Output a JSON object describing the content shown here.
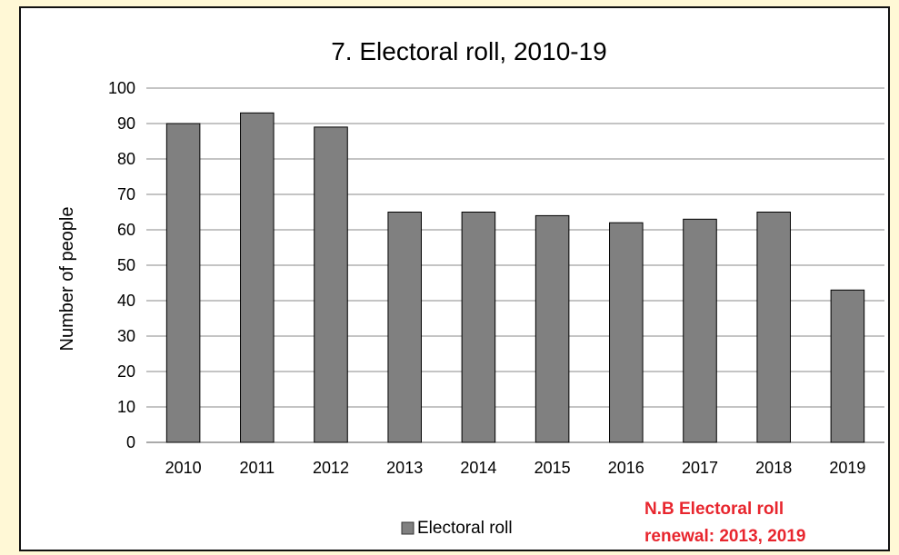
{
  "chart_data": {
    "type": "bar",
    "title": "7. Electoral roll, 2010-19",
    "xlabel": "",
    "ylabel": "Number of people",
    "categories": [
      "2010",
      "2011",
      "2012",
      "2013",
      "2014",
      "2015",
      "2016",
      "2017",
      "2018",
      "2019"
    ],
    "series": [
      {
        "name": "Electoral roll",
        "values": [
          90,
          93,
          89,
          65,
          65,
          64,
          62,
          63,
          65,
          43
        ],
        "color": "#808080"
      }
    ],
    "ylim": [
      0,
      100
    ],
    "yticks": [
      "0",
      "10",
      "20",
      "30",
      "40",
      "50",
      "60",
      "70",
      "80",
      "90",
      "100"
    ],
    "grid": true,
    "legend": "bottom",
    "annotation": {
      "lines": [
        "N.B Electoral roll",
        "renewal: 2013, 2019"
      ],
      "color": "#e8262e"
    }
  }
}
